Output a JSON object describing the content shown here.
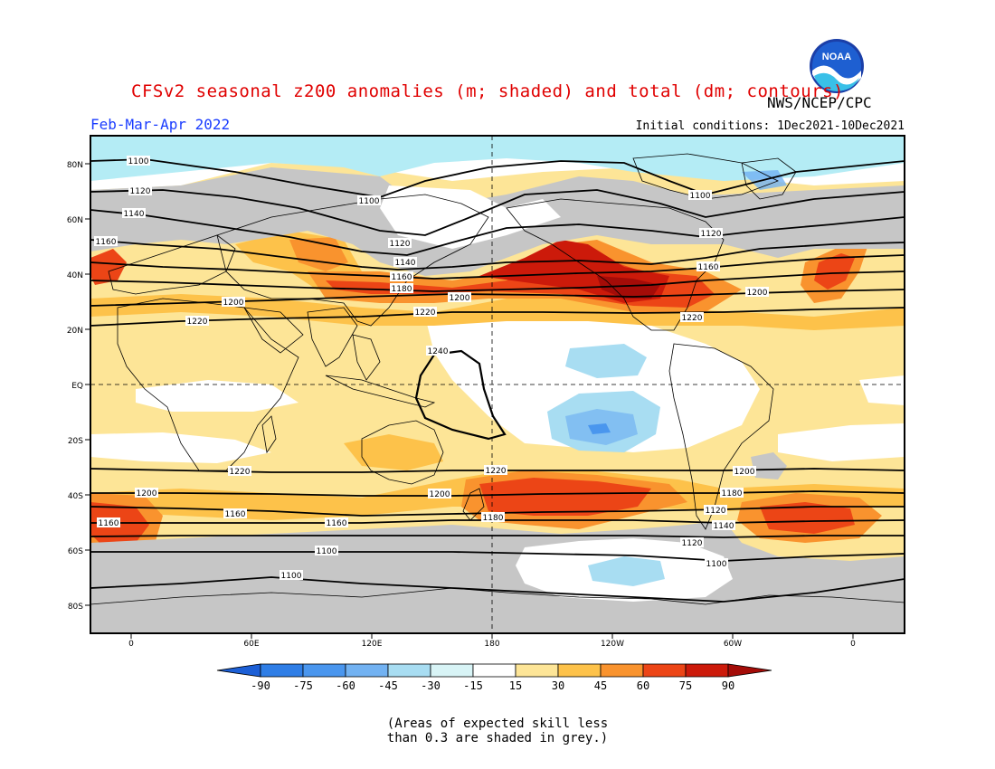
{
  "header": {
    "title": "CFSv2 seasonal z200 anomalies (m; shaded) and total (dm; contours)",
    "org": "NWS/NCEP/CPC",
    "period": "Feb-Mar-Apr 2022",
    "initial_conditions": "Initial conditions: 1Dec2021-10Dec2021",
    "logo_text": "NOAA"
  },
  "axes": {
    "lat_labels": [
      "80N",
      "60N",
      "40N",
      "20N",
      "EQ",
      "20S",
      "40S",
      "60S",
      "80S"
    ],
    "lon_labels": [
      "0",
      "60E",
      "120E",
      "180",
      "120W",
      "60W",
      "0"
    ]
  },
  "contour_labels": [
    "1100",
    "1100",
    "1100",
    "1100",
    "1120",
    "1120",
    "1120",
    "1140",
    "1140",
    "1160",
    "1160",
    "1160",
    "1180",
    "1200",
    "1200",
    "1200",
    "1220",
    "1220",
    "1240",
    "1220",
    "1220",
    "1220",
    "1200",
    "1200",
    "1200",
    "1180",
    "1180",
    "1160",
    "1160",
    "1160",
    "1140",
    "1120",
    "1120",
    "1100",
    "1100"
  ],
  "colorbar": {
    "labels": [
      "-90",
      "-75",
      "-60",
      "-45",
      "-30",
      "-15",
      "15",
      "30",
      "45",
      "60",
      "75",
      "90"
    ],
    "colors": [
      "#1c5fd6",
      "#2f7ee6",
      "#4a96ee",
      "#72b2f2",
      "#a8ddf2",
      "#d8f4f6",
      "#ffffff",
      "#fde597",
      "#fdc24a",
      "#f9932e",
      "#ec4516",
      "#cc1a0a",
      "#a40c08"
    ]
  },
  "note": {
    "line1": "(Areas of expected skill less",
    "line2": "than 0.3 are shaded in grey.)"
  }
}
